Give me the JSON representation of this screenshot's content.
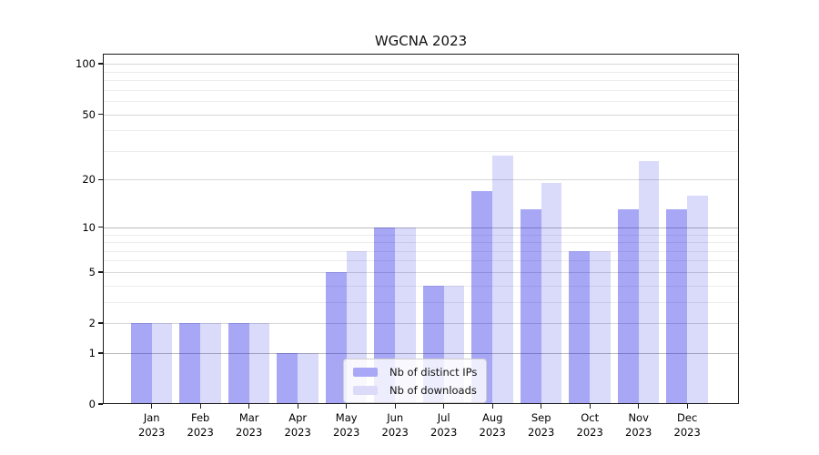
{
  "chart_data": {
    "type": "bar",
    "title": "WGCNA 2023",
    "categories": [
      "Jan 2023",
      "Feb 2023",
      "Mar 2023",
      "Apr 2023",
      "May 2023",
      "Jun 2023",
      "Jul 2023",
      "Aug 2023",
      "Sep 2023",
      "Oct 2023",
      "Nov 2023",
      "Dec 2023"
    ],
    "series": [
      {
        "name": "Nb of distinct IPs",
        "legend_color": "#a8a8f6",
        "color": "#0000e6",
        "alpha": 0.345,
        "values": [
          2,
          2,
          2,
          1,
          5,
          10,
          4,
          17,
          13,
          7,
          13,
          13
        ]
      },
      {
        "name": "Nb of downloads",
        "legend_color": "#dbdbf9",
        "color": "#0000e6",
        "alpha": 0.145,
        "values": [
          2,
          2,
          2,
          1,
          7,
          10,
          4,
          28,
          19,
          7,
          26,
          16
        ]
      }
    ],
    "y_ticks": [
      100,
      50,
      20,
      10,
      5,
      2,
      1,
      0
    ],
    "y_scale": "log10(value+1)",
    "ylim": [
      0,
      116
    ],
    "grid": "horizontal, major and minor",
    "legend_position": "inside lower center"
  }
}
